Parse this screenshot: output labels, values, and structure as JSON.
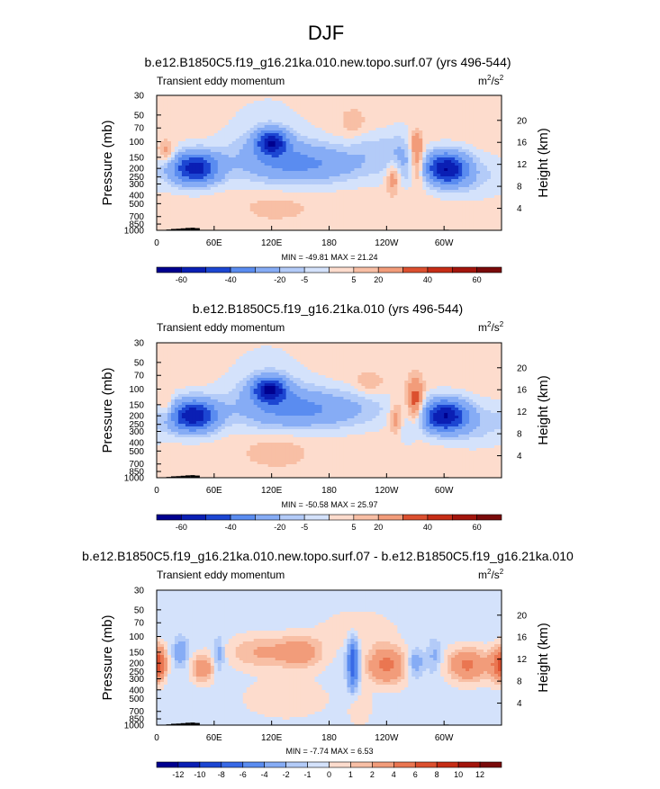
{
  "page_title": "DJF",
  "colors": {
    "blues": [
      "#00008f",
      "#0a1fb4",
      "#1c46d2",
      "#3869e6",
      "#5a8cf0",
      "#86acf5",
      "#b3cbf8",
      "#d4e2fb"
    ],
    "reds": [
      "#fddccd",
      "#f8bfa5",
      "#f29c7a",
      "#ea7651",
      "#dc502f",
      "#c62d16",
      "#a3150c",
      "#7a0a0a"
    ],
    "neutral": "#d4e2fb",
    "neutral_warm": "#fddccd",
    "topography": "#000000"
  },
  "chart_data": [
    {
      "type": "contour",
      "title": "b.e12.B1850C5.f19_g16.21ka.010.new.topo.surf.07 (yrs 496-544)",
      "left_label": "Transient eddy momentum",
      "units_base": "m",
      "units_sup1": "2",
      "units_mid": "/s",
      "units_sup2": "2",
      "ylabel": "Pressure (mb)",
      "ylabel_right": "Height (km)",
      "y_ticks": [
        "30",
        "50",
        "70",
        "100",
        "150",
        "200",
        "250",
        "300",
        "400",
        "500",
        "700",
        "850",
        "1000"
      ],
      "y_tick_values": [
        30,
        50,
        70,
        100,
        150,
        200,
        250,
        300,
        400,
        500,
        700,
        850,
        1000
      ],
      "height_ticks": [
        "20",
        "16",
        "12",
        "8",
        "4"
      ],
      "height_tick_values": [
        20,
        16,
        12,
        8,
        4
      ],
      "x_ticks": [
        "0",
        "60E",
        "120E",
        "180",
        "120W",
        "60W"
      ],
      "x_tick_values": [
        0,
        60,
        120,
        180,
        240,
        300
      ],
      "xlim": [
        0,
        360
      ],
      "ylim": [
        1000,
        30
      ],
      "minmax_text": "MIN = -49.81  MAX =  21.24",
      "min": -49.81,
      "max": 21.24,
      "colorbar_labels": [
        "-60",
        "-40",
        "-20",
        "-5",
        "5",
        "20",
        "40",
        "60"
      ],
      "colorbar_levels": [
        -60,
        -50,
        -40,
        -30,
        -20,
        -10,
        -5,
        0,
        5,
        10,
        20,
        30,
        40,
        50,
        60
      ],
      "background": "warm",
      "features": [
        {
          "lon": 40,
          "p": 200,
          "value": -48,
          "slon": 18,
          "slnp": 0.3
        },
        {
          "lon": 120,
          "p": 100,
          "value": -40,
          "slon": 11,
          "slnp": 0.22
        },
        {
          "lon": 170,
          "p": 180,
          "value": -18,
          "slon": 45,
          "slnp": 0.35
        },
        {
          "lon": 120,
          "p": 150,
          "value": -14,
          "slon": 35,
          "slnp": 0.45
        },
        {
          "lon": 115,
          "p": 60,
          "value": -4,
          "slon": 30,
          "slnp": 0.6
        },
        {
          "lon": 302,
          "p": 200,
          "value": -49,
          "slon": 16,
          "slnp": 0.3
        },
        {
          "lon": 255,
          "p": 150,
          "value": -12,
          "slon": 12,
          "slnp": 0.5
        },
        {
          "lon": 330,
          "p": 250,
          "value": -8,
          "slon": 25,
          "slnp": 0.4
        },
        {
          "lon": 10,
          "p": 130,
          "value": 12,
          "slon": 6,
          "slnp": 0.2
        },
        {
          "lon": 247,
          "p": 250,
          "value": 18,
          "slon": 5,
          "slnp": 0.3
        },
        {
          "lon": 272,
          "p": 170,
          "value": 21,
          "slon": 5,
          "slnp": 0.4
        },
        {
          "lon": 270,
          "p": 100,
          "value": 10,
          "slon": 5,
          "slnp": 0.2
        },
        {
          "lon": 205,
          "p": 60,
          "value": 6,
          "slon": 10,
          "slnp": 0.25
        },
        {
          "lon": 125,
          "p": 550,
          "value": 5,
          "slon": 25,
          "slnp": 0.25
        },
        {
          "lon": 225,
          "p": 110,
          "value": -6,
          "slon": 15,
          "slnp": 0.3
        }
      ],
      "topography": [
        [
          10,
          15,
          980
        ],
        [
          15,
          20,
          965
        ],
        [
          20,
          25,
          960
        ],
        [
          25,
          30,
          950
        ],
        [
          30,
          35,
          940
        ],
        [
          35,
          40,
          935
        ],
        [
          40,
          45,
          945
        ],
        [
          140,
          145,
          990
        ],
        [
          300,
          305,
          985
        ]
      ]
    },
    {
      "type": "contour",
      "title": "b.e12.B1850C5.f19_g16.21ka.010 (yrs 496-544)",
      "left_label": "Transient eddy momentum",
      "units_base": "m",
      "units_sup1": "2",
      "units_mid": "/s",
      "units_sup2": "2",
      "ylabel": "Pressure (mb)",
      "ylabel_right": "Height (km)",
      "y_ticks": [
        "30",
        "50",
        "70",
        "100",
        "150",
        "200",
        "250",
        "300",
        "400",
        "500",
        "700",
        "850",
        "1000"
      ],
      "y_tick_values": [
        30,
        50,
        70,
        100,
        150,
        200,
        250,
        300,
        400,
        500,
        700,
        850,
        1000
      ],
      "height_ticks": [
        "20",
        "16",
        "12",
        "8",
        "4"
      ],
      "height_tick_values": [
        20,
        16,
        12,
        8,
        4
      ],
      "x_ticks": [
        "0",
        "60E",
        "120E",
        "180",
        "120W",
        "60W"
      ],
      "x_tick_values": [
        0,
        60,
        120,
        180,
        240,
        300
      ],
      "xlim": [
        0,
        360
      ],
      "ylim": [
        1000,
        30
      ],
      "minmax_text": "MIN = -50.58  MAX =  25.97",
      "min": -50.58,
      "max": 25.97,
      "colorbar_labels": [
        "-60",
        "-40",
        "-20",
        "-5",
        "5",
        "20",
        "40",
        "60"
      ],
      "colorbar_levels": [
        -60,
        -50,
        -40,
        -30,
        -20,
        -10,
        -5,
        0,
        5,
        10,
        20,
        30,
        40,
        50,
        60
      ],
      "background": "warm",
      "features": [
        {
          "lon": 38,
          "p": 200,
          "value": -50,
          "slon": 18,
          "slnp": 0.3
        },
        {
          "lon": 118,
          "p": 100,
          "value": -42,
          "slon": 12,
          "slnp": 0.22
        },
        {
          "lon": 175,
          "p": 170,
          "value": -18,
          "slon": 45,
          "slnp": 0.35
        },
        {
          "lon": 120,
          "p": 150,
          "value": -15,
          "slon": 35,
          "slnp": 0.45
        },
        {
          "lon": 115,
          "p": 60,
          "value": -4,
          "slon": 30,
          "slnp": 0.6
        },
        {
          "lon": 300,
          "p": 200,
          "value": -50,
          "slon": 17,
          "slnp": 0.3
        },
        {
          "lon": 335,
          "p": 250,
          "value": -9,
          "slon": 25,
          "slnp": 0.4
        },
        {
          "lon": 10,
          "p": 160,
          "value": 10,
          "slon": 6,
          "slnp": 0.25
        },
        {
          "lon": 250,
          "p": 210,
          "value": 15,
          "slon": 5,
          "slnp": 0.3
        },
        {
          "lon": 270,
          "p": 140,
          "value": 26,
          "slon": 6,
          "slnp": 0.4
        },
        {
          "lon": 222,
          "p": 85,
          "value": 8,
          "slon": 10,
          "slnp": 0.2
        },
        {
          "lon": 125,
          "p": 500,
          "value": 6,
          "slon": 25,
          "slnp": 0.3
        },
        {
          "lon": 262,
          "p": 300,
          "value": -6,
          "slon": 8,
          "slnp": 0.3
        }
      ],
      "topography": [
        [
          10,
          15,
          980
        ],
        [
          15,
          20,
          965
        ],
        [
          20,
          25,
          960
        ],
        [
          25,
          30,
          950
        ],
        [
          30,
          35,
          940
        ],
        [
          35,
          40,
          935
        ],
        [
          40,
          45,
          945
        ],
        [
          140,
          145,
          990
        ],
        [
          300,
          305,
          985
        ]
      ]
    },
    {
      "type": "contour",
      "title": "b.e12.B1850C5.f19_g16.21ka.010.new.topo.surf.07 - b.e12.B1850C5.f19_g16.21ka.010",
      "left_label": "Transient eddy momentum",
      "units_base": "m",
      "units_sup1": "2",
      "units_mid": "/s",
      "units_sup2": "2",
      "ylabel": "Pressure (mb)",
      "ylabel_right": "Height (km)",
      "y_ticks": [
        "30",
        "50",
        "70",
        "100",
        "150",
        "200",
        "250",
        "300",
        "400",
        "500",
        "700",
        "850",
        "1000"
      ],
      "y_tick_values": [
        30,
        50,
        70,
        100,
        150,
        200,
        250,
        300,
        400,
        500,
        700,
        850,
        1000
      ],
      "height_ticks": [
        "20",
        "16",
        "12",
        "8",
        "4"
      ],
      "height_tick_values": [
        20,
        16,
        12,
        8,
        4
      ],
      "x_ticks": [
        "0",
        "60E",
        "120E",
        "180",
        "120W",
        "60W"
      ],
      "x_tick_values": [
        0,
        60,
        120,
        180,
        240,
        300
      ],
      "xlim": [
        0,
        360
      ],
      "ylim": [
        1000,
        30
      ],
      "minmax_text": "MIN = -7.74  MAX =  6.53",
      "min": -7.74,
      "max": 6.53,
      "colorbar_labels": [
        "-12",
        "-10",
        "-8",
        "-6",
        "-4",
        "-2",
        "-1",
        "0",
        "1",
        "2",
        "4",
        "6",
        "8",
        "10",
        "12"
      ],
      "colorbar_levels": [
        -14,
        -12,
        -10,
        -8,
        -6,
        -4,
        -2,
        -1,
        0,
        1,
        2,
        4,
        6,
        8,
        10,
        12,
        14
      ],
      "background": "cool",
      "features": [
        {
          "lon": 3,
          "p": 200,
          "value": 6,
          "slon": 5,
          "slnp": 0.3
        },
        {
          "lon": 48,
          "p": 230,
          "value": 4,
          "slon": 8,
          "slnp": 0.25
        },
        {
          "lon": 105,
          "p": 150,
          "value": 2.5,
          "slon": 22,
          "slnp": 0.3
        },
        {
          "lon": 150,
          "p": 150,
          "value": 3.5,
          "slon": 18,
          "slnp": 0.3
        },
        {
          "lon": 240,
          "p": 210,
          "value": 5,
          "slon": 15,
          "slnp": 0.35
        },
        {
          "lon": 325,
          "p": 210,
          "value": 5,
          "slon": 15,
          "slnp": 0.3
        },
        {
          "lon": 355,
          "p": 210,
          "value": 4,
          "slon": 6,
          "slnp": 0.3
        },
        {
          "lon": 210,
          "p": 80,
          "value": 1.5,
          "slon": 25,
          "slnp": 0.3
        },
        {
          "lon": 135,
          "p": 500,
          "value": 1.5,
          "slon": 30,
          "slnp": 0.35
        },
        {
          "lon": 212,
          "p": 650,
          "value": 1.5,
          "slon": 8,
          "slnp": 0.3
        },
        {
          "lon": 205,
          "p": 200,
          "value": -7.7,
          "slon": 4,
          "slnp": 0.45
        },
        {
          "lon": 25,
          "p": 150,
          "value": -3,
          "slon": 5,
          "slnp": 0.25
        },
        {
          "lon": 65,
          "p": 160,
          "value": -2.5,
          "slon": 4,
          "slnp": 0.3
        },
        {
          "lon": 270,
          "p": 200,
          "value": -3,
          "slon": 6,
          "slnp": 0.25
        },
        {
          "lon": 290,
          "p": 170,
          "value": -2,
          "slon": 5,
          "slnp": 0.3
        }
      ],
      "topography": [
        [
          10,
          15,
          980
        ],
        [
          15,
          20,
          965
        ],
        [
          20,
          25,
          960
        ],
        [
          25,
          30,
          950
        ],
        [
          30,
          35,
          940
        ],
        [
          35,
          40,
          935
        ],
        [
          40,
          45,
          945
        ],
        [
          140,
          145,
          990
        ],
        [
          300,
          305,
          985
        ]
      ]
    }
  ]
}
